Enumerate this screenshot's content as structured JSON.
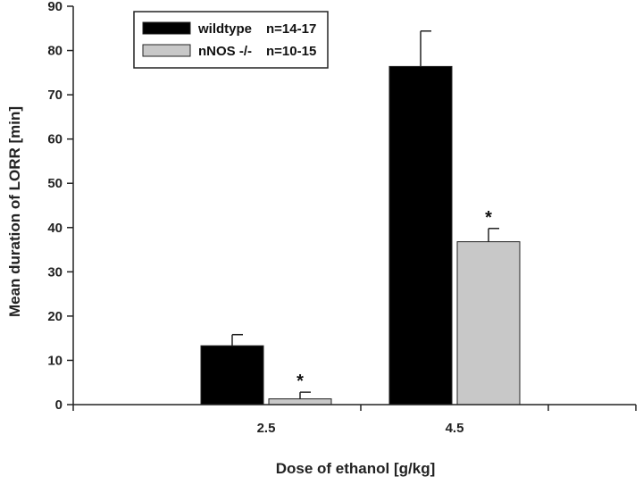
{
  "chart_data": {
    "type": "bar",
    "categories": [
      "2.5",
      "4.5"
    ],
    "series": [
      {
        "name": "wildtype",
        "n_label": "n=14-17",
        "values": [
          13.3,
          76.4
        ],
        "errors": [
          2.5,
          8.0
        ],
        "color": "#000000",
        "significance": [
          "",
          ""
        ]
      },
      {
        "name": "nNOS -/-",
        "n_label": "n=10-15",
        "values": [
          1.3,
          36.8
        ],
        "errors": [
          1.5,
          3.0
        ],
        "color": "#c8c8c8",
        "significance": [
          "*",
          "*"
        ]
      }
    ],
    "xlabel": "Dose of ethanol [g/kg]",
    "ylabel": "Mean duration of LORR [min]",
    "ylim": [
      0,
      90
    ],
    "yticks": [
      "0",
      "10",
      "20",
      "30",
      "40",
      "50",
      "60",
      "70",
      "80",
      "90"
    ],
    "legend_position": "top-left",
    "grid": false
  }
}
